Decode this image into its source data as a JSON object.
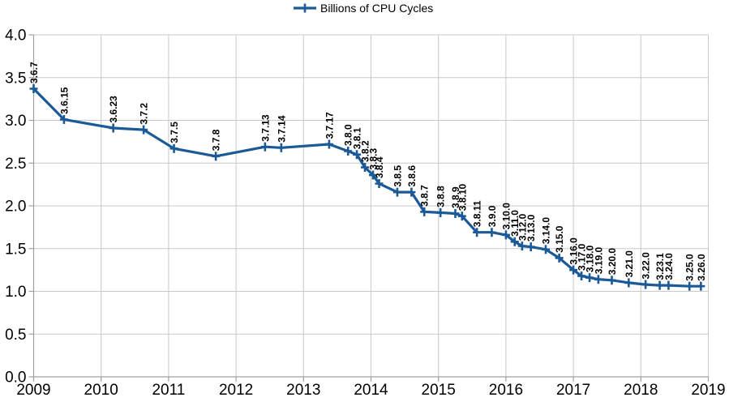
{
  "legend": {
    "label": "Billions of CPU Cycles",
    "position": "top"
  },
  "chart_data": {
    "type": "line",
    "title": "",
    "xlabel": "",
    "ylabel": "",
    "xlim": [
      2009,
      2019
    ],
    "ylim": [
      0.0,
      4.0
    ],
    "x_ticks": [
      2009,
      2010,
      2011,
      2012,
      2013,
      2014,
      2015,
      2016,
      2017,
      2018,
      2019
    ],
    "y_ticks": [
      0.0,
      0.5,
      1.0,
      1.5,
      2.0,
      2.5,
      3.0,
      3.5,
      4.0
    ],
    "grid": true,
    "legend_position": "top-center",
    "colors": {
      "series": "#1b5a96",
      "grid": "#c8c8c8",
      "axis": "#a0a0a0",
      "text": "#000000",
      "background": "#ffffff"
    },
    "marker_style": "plus",
    "series": [
      {
        "name": "Billions of CPU Cycles",
        "points": [
          {
            "label": "3.6.7",
            "x": 2009.0,
            "y": 3.37
          },
          {
            "label": "3.6.15",
            "x": 2009.45,
            "y": 3.01
          },
          {
            "label": "3.6.23",
            "x": 2010.18,
            "y": 2.91
          },
          {
            "label": "3.7.2",
            "x": 2010.63,
            "y": 2.89
          },
          {
            "label": "3.7.5",
            "x": 2011.08,
            "y": 2.67
          },
          {
            "label": "3.7.8",
            "x": 2011.7,
            "y": 2.58
          },
          {
            "label": "3.7.13",
            "x": 2012.43,
            "y": 2.69
          },
          {
            "label": "3.7.14",
            "x": 2012.67,
            "y": 2.68
          },
          {
            "label": "3.7.17",
            "x": 2013.38,
            "y": 2.72
          },
          {
            "label": "3.8.0",
            "x": 2013.66,
            "y": 2.64
          },
          {
            "label": "3.8.1",
            "x": 2013.79,
            "y": 2.6
          },
          {
            "label": "3.8.2",
            "x": 2013.91,
            "y": 2.45
          },
          {
            "label": "3.8.3",
            "x": 2014.03,
            "y": 2.36
          },
          {
            "label": "3.8.4",
            "x": 2014.12,
            "y": 2.26
          },
          {
            "label": "3.8.5",
            "x": 2014.39,
            "y": 2.16
          },
          {
            "label": "3.8.6",
            "x": 2014.6,
            "y": 2.16
          },
          {
            "label": "3.8.7",
            "x": 2014.79,
            "y": 1.93
          },
          {
            "label": "3.8.8",
            "x": 2015.03,
            "y": 1.92
          },
          {
            "label": "3.8.9",
            "x": 2015.25,
            "y": 1.91
          },
          {
            "label": "3.8.10",
            "x": 2015.35,
            "y": 1.88
          },
          {
            "label": "3.8.11",
            "x": 2015.57,
            "y": 1.69
          },
          {
            "label": "3.9.0",
            "x": 2015.79,
            "y": 1.69
          },
          {
            "label": "3.10.0",
            "x": 2016.0,
            "y": 1.66
          },
          {
            "label": "3.11.0",
            "x": 2016.13,
            "y": 1.58
          },
          {
            "label": "3.12.0",
            "x": 2016.24,
            "y": 1.53
          },
          {
            "label": "3.13.0",
            "x": 2016.37,
            "y": 1.52
          },
          {
            "label": "3.14.0",
            "x": 2016.59,
            "y": 1.49
          },
          {
            "label": "3.15.0",
            "x": 2016.79,
            "y": 1.39
          },
          {
            "label": "3.16.0",
            "x": 2017.0,
            "y": 1.25
          },
          {
            "label": "3.17.0",
            "x": 2017.12,
            "y": 1.18
          },
          {
            "label": "3.18.0",
            "x": 2017.24,
            "y": 1.16
          },
          {
            "label": "3.19.0",
            "x": 2017.37,
            "y": 1.14
          },
          {
            "label": "3.20.0",
            "x": 2017.57,
            "y": 1.13
          },
          {
            "label": "3.21.0",
            "x": 2017.82,
            "y": 1.1
          },
          {
            "label": "3.22.0",
            "x": 2018.07,
            "y": 1.08
          },
          {
            "label": "3.23.1",
            "x": 2018.28,
            "y": 1.07
          },
          {
            "label": "3.24.0",
            "x": 2018.41,
            "y": 1.07
          },
          {
            "label": "3.25.0",
            "x": 2018.72,
            "y": 1.06
          },
          {
            "label": "3.26.0",
            "x": 2018.89,
            "y": 1.06
          }
        ]
      }
    ]
  }
}
